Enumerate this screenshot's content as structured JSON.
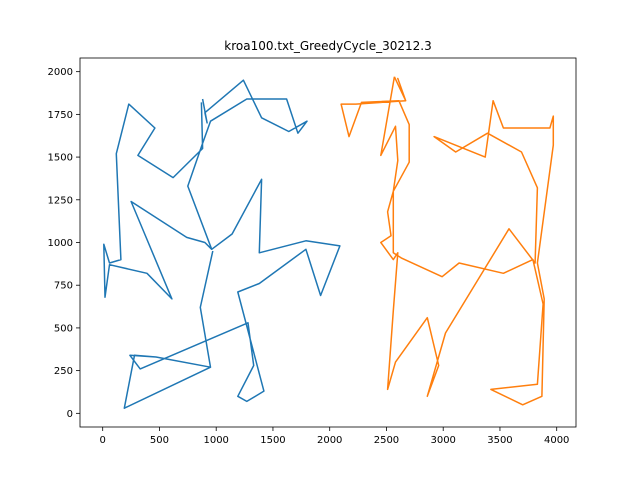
{
  "chart_data": {
    "type": "line",
    "title": "kroa100.txt_GreedyCycle_30212.3",
    "xlabel": "",
    "ylabel": "",
    "xlim": [
      -200,
      4170
    ],
    "ylim": [
      -80,
      2080
    ],
    "x_ticks": [
      0,
      500,
      1000,
      1500,
      2000,
      2500,
      3000,
      3500,
      4000
    ],
    "y_ticks": [
      0,
      250,
      500,
      750,
      1000,
      1250,
      1500,
      1750,
      2000
    ],
    "grid": false,
    "legend": "none",
    "series": [
      {
        "color": "#1f77b4",
        "points": [
          [
            880,
            1840
          ],
          [
            900,
            1750
          ],
          [
            920,
            1700
          ],
          [
            1240,
            1950
          ],
          [
            1400,
            1730
          ],
          [
            1640,
            1650
          ],
          [
            1800,
            1710
          ],
          [
            1720,
            1640
          ],
          [
            1620,
            1840
          ],
          [
            1270,
            1840
          ],
          [
            950,
            1710
          ],
          [
            890,
            1760
          ],
          [
            870,
            1560
          ],
          [
            750,
            1330
          ],
          [
            960,
            960
          ],
          [
            900,
            1000
          ],
          [
            730,
            1030
          ],
          [
            280,
            1240
          ],
          [
            380,
            1050
          ],
          [
            620,
            670
          ],
          [
            400,
            820
          ],
          [
            180,
            860
          ],
          [
            60,
            870
          ],
          [
            10,
            680
          ],
          [
            30,
            990
          ],
          [
            80,
            880
          ],
          [
            170,
            900
          ],
          [
            230,
            870
          ]
        ],
        "path": [
          [
            880,
            1840
          ],
          [
            920,
            1700
          ],
          [
            900,
            1760
          ],
          [
            1240,
            1950
          ],
          [
            1400,
            1730
          ],
          [
            1640,
            1650
          ],
          [
            1800,
            1710
          ],
          [
            1720,
            1640
          ],
          [
            1620,
            1840
          ],
          [
            1270,
            1840
          ],
          [
            950,
            1710
          ],
          [
            870,
            1560
          ],
          [
            750,
            1330
          ],
          [
            960,
            960
          ],
          [
            900,
            1000
          ],
          [
            740,
            1030
          ],
          [
            250,
            1240
          ],
          [
            370,
            1050
          ],
          [
            610,
            670
          ],
          [
            390,
            820
          ],
          [
            60,
            870
          ],
          [
            20,
            680
          ],
          [
            10,
            990
          ],
          [
            60,
            880
          ],
          [
            160,
            900
          ],
          [
            120,
            1520
          ],
          [
            230,
            1810
          ],
          [
            460,
            1670
          ],
          [
            310,
            1510
          ],
          [
            620,
            1380
          ],
          [
            880,
            1550
          ],
          [
            870,
            1820
          ]
        ]
      },
      {
        "color": "#ff7f0e",
        "path": []
      }
    ]
  }
}
